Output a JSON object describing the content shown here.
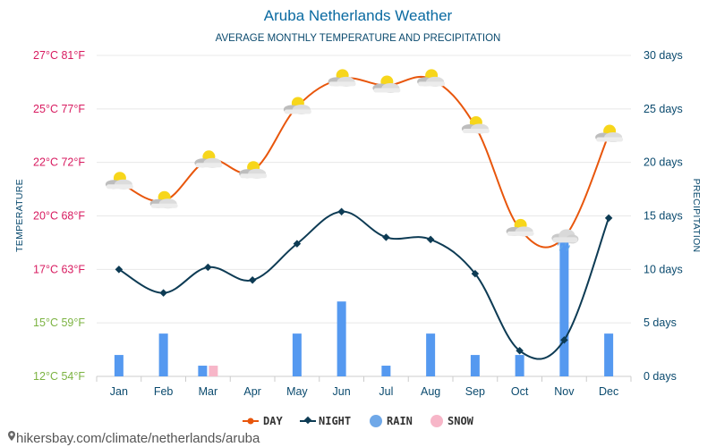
{
  "title": "Aruba Netherlands Weather",
  "subtitle": "AVERAGE MONTHLY TEMPERATURE AND PRECIPITATION",
  "left_axis_label": "TEMPERATURE",
  "right_axis_label": "PRECIPITATION",
  "left_ticks": [
    {
      "label": "27°C 81°F",
      "value": 27.5,
      "color": "#d81b60"
    },
    {
      "label": "25°C 77°F",
      "value": 25,
      "color": "#d81b60"
    },
    {
      "label": "22°C 72°F",
      "value": 22.5,
      "color": "#d81b60"
    },
    {
      "label": "20°C 68°F",
      "value": 20,
      "color": "#d81b60"
    },
    {
      "label": "17°C 63°F",
      "value": 17.5,
      "color": "#d81b60"
    },
    {
      "label": "15°C 59°F",
      "value": 15,
      "color": "#7cb342"
    },
    {
      "label": "12°C 54°F",
      "value": 12.5,
      "color": "#7cb342"
    }
  ],
  "right_ticks": [
    "30 days",
    "25 days",
    "20 days",
    "15 days",
    "10 days",
    "5 days",
    "0 days"
  ],
  "legend": [
    {
      "label": "DAY",
      "color": "#e8560c"
    },
    {
      "label": "NIGHT",
      "color": "#0d3b54"
    },
    {
      "label": "RAIN",
      "color": "#6fa8e8"
    },
    {
      "label": "SNOW",
      "color": "#f7b6c8"
    }
  ],
  "footer": "hikersbay.com/climate/netherlands/aruba",
  "chart_data": {
    "type": "line+bar",
    "categories": [
      "Jan",
      "Feb",
      "Mar",
      "Apr",
      "May",
      "Jun",
      "Jul",
      "Aug",
      "Sep",
      "Oct",
      "Nov",
      "Dec"
    ],
    "temp_ylim": [
      12.5,
      27.5
    ],
    "precip_ylim": [
      0,
      30
    ],
    "series": [
      {
        "name": "DAY",
        "type": "line",
        "axis": "temperature",
        "color": "#e8560c",
        "values": [
          21.6,
          20.7,
          22.6,
          22.1,
          25.1,
          26.4,
          26.1,
          26.4,
          24.2,
          19.4,
          19.0,
          23.8
        ]
      },
      {
        "name": "NIGHT",
        "type": "line",
        "axis": "temperature",
        "color": "#0d3b54",
        "values": [
          17.5,
          16.4,
          17.6,
          17.0,
          18.7,
          20.2,
          19.0,
          18.9,
          17.3,
          13.7,
          14.2,
          19.9
        ]
      },
      {
        "name": "RAIN",
        "type": "bar",
        "axis": "precipitation",
        "unit": "days",
        "color": "#5599f0",
        "values": [
          2,
          4,
          1,
          0,
          4,
          7,
          1,
          4,
          2,
          2,
          13,
          4
        ]
      },
      {
        "name": "SNOW",
        "type": "bar",
        "axis": "precipitation",
        "unit": "days",
        "color": "#f7b6c8",
        "values": [
          0,
          0,
          1,
          0,
          0,
          0,
          0,
          0,
          0,
          0,
          0,
          0
        ]
      }
    ],
    "day_icons": [
      "sun-cloud",
      "sun-cloud",
      "sun-cloud",
      "sun-cloud",
      "sun-cloud",
      "sun-cloud",
      "sun-cloud",
      "sun-cloud",
      "sun-cloud",
      "sun-cloud",
      "rain-cloud",
      "sun-cloud"
    ],
    "grid": true,
    "legend_position": "bottom"
  }
}
